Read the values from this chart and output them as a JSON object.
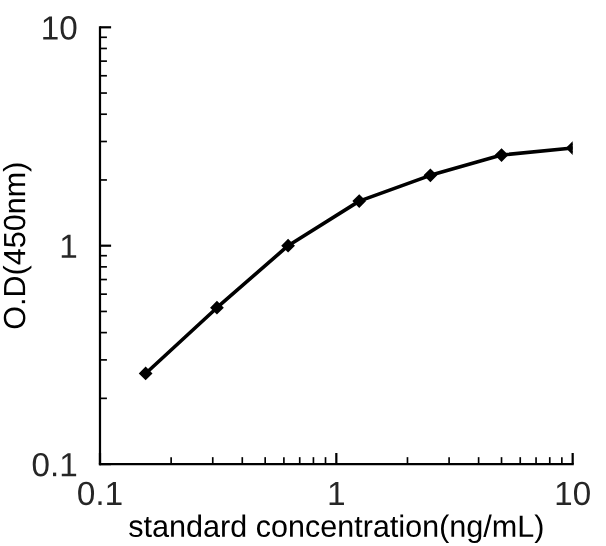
{
  "chart_data": {
    "type": "line",
    "xlabel": "standard concentration(ng/mL)",
    "ylabel": "O.D(450nm)",
    "x": [
      0.156,
      0.3125,
      0.625,
      1.25,
      2.5,
      5,
      10
    ],
    "series": [
      {
        "color": "#000000",
        "values": [
          0.26,
          0.52,
          1.0,
          1.6,
          2.1,
          2.6,
          2.8
        ]
      }
    ],
    "log": "xy",
    "xlim": [
      0.1,
      10
    ],
    "ylim": [
      0.1,
      10
    ],
    "xticks": [
      0.1,
      1,
      10
    ],
    "yticks": [
      0.1,
      1,
      10
    ],
    "marker": "diamond",
    "line_style": "solid",
    "grid": false,
    "legend": false
  }
}
